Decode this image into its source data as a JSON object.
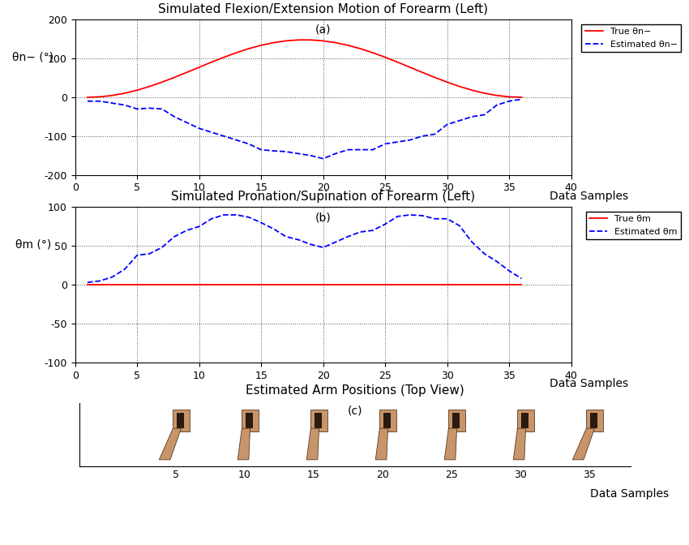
{
  "chart_data": [
    {
      "type": "line",
      "title": "Simulated Flexion/Extension Motion of Forearm (Left)",
      "annotation": "(a)",
      "xlabel": "Data Samples",
      "ylabel": "θn− (°)",
      "x": [
        1,
        2,
        3,
        4,
        5,
        6,
        7,
        8,
        9,
        10,
        11,
        12,
        13,
        14,
        15,
        16,
        17,
        18,
        19,
        20,
        21,
        22,
        23,
        24,
        25,
        26,
        27,
        28,
        29,
        30,
        31,
        32,
        33,
        34,
        35,
        36
      ],
      "series": [
        {
          "name": "True θn−",
          "color": "#ff0000",
          "line_style": "solid",
          "values": [
            0,
            1.2,
            4.7,
            10.5,
            18.3,
            27.9,
            39.0,
            51.1,
            64.1,
            77.3,
            90.5,
            103.1,
            114.8,
            125.2,
            133.9,
            140.7,
            145.3,
            147.7,
            147.7,
            145.3,
            140.7,
            133.9,
            125.2,
            114.8,
            103.1,
            90.5,
            77.3,
            64.1,
            51.1,
            39.0,
            27.9,
            18.3,
            10.5,
            4.7,
            1.2,
            0
          ]
        },
        {
          "name": "Estimated θn−",
          "color": "#0000ff",
          "line_style": "dashed",
          "values": [
            -10,
            -10,
            -15,
            -20,
            -30,
            -28,
            -30,
            -50,
            -65,
            -80,
            -90,
            -100,
            -110,
            -120,
            -135,
            -138,
            -140,
            -145,
            -150,
            -158,
            -145,
            -135,
            -135,
            -135,
            -120,
            -115,
            -110,
            -100,
            -95,
            -70,
            -60,
            -50,
            -45,
            -20,
            -10,
            -5
          ]
        }
      ],
      "xlim": [
        0,
        40
      ],
      "xticks": [
        0,
        5,
        10,
        15,
        20,
        25,
        30,
        35,
        40
      ],
      "ylim": [
        -200,
        200
      ],
      "yticks": [
        -200,
        -100,
        0,
        100,
        200
      ],
      "grid": true,
      "legend": "upper right"
    },
    {
      "type": "line",
      "title": "Simulated Pronation/Supination of Forearm (Left)",
      "annotation": "(b)",
      "xlabel": "Data Samples",
      "ylabel": "θm (°)",
      "x": [
        1,
        2,
        3,
        4,
        5,
        6,
        7,
        8,
        9,
        10,
        11,
        12,
        13,
        14,
        15,
        16,
        17,
        18,
        19,
        20,
        21,
        22,
        23,
        24,
        25,
        26,
        27,
        28,
        29,
        30,
        31,
        32,
        33,
        34,
        35,
        36
      ],
      "series": [
        {
          "name": "True θm",
          "color": "#ff0000",
          "line_style": "solid",
          "values": [
            0,
            0,
            0,
            0,
            0,
            0,
            0,
            0,
            0,
            0,
            0,
            0,
            0,
            0,
            0,
            0,
            0,
            0,
            0,
            0,
            0,
            0,
            0,
            0,
            0,
            0,
            0,
            0,
            0,
            0,
            0,
            0,
            0,
            0,
            0,
            0
          ]
        },
        {
          "name": "Estimated θm",
          "color": "#0000ff",
          "line_style": "dashed",
          "values": [
            3,
            5,
            10,
            20,
            38,
            40,
            48,
            62,
            70,
            75,
            85,
            90,
            90,
            87,
            80,
            72,
            62,
            58,
            52,
            48,
            55,
            62,
            68,
            70,
            78,
            88,
            90,
            89,
            85,
            85,
            76,
            55,
            40,
            30,
            18,
            8
          ]
        }
      ],
      "xlim": [
        0,
        40
      ],
      "xticks": [
        0,
        5,
        10,
        15,
        20,
        25,
        30,
        35,
        40
      ],
      "ylim": [
        -100,
        100
      ],
      "yticks": [
        -100,
        -50,
        0,
        50,
        100
      ],
      "grid": true,
      "legend": "upper right"
    },
    {
      "type": "image_strip",
      "title": "Estimated Arm Positions (Top View)",
      "annotation": "(c)",
      "xlabel": "Data Samples",
      "xlim": [
        -2,
        38
      ],
      "xticks": [
        5,
        10,
        15,
        20,
        25,
        30,
        35
      ],
      "tick_labels": "x",
      "color": "#c8956a"
    }
  ]
}
